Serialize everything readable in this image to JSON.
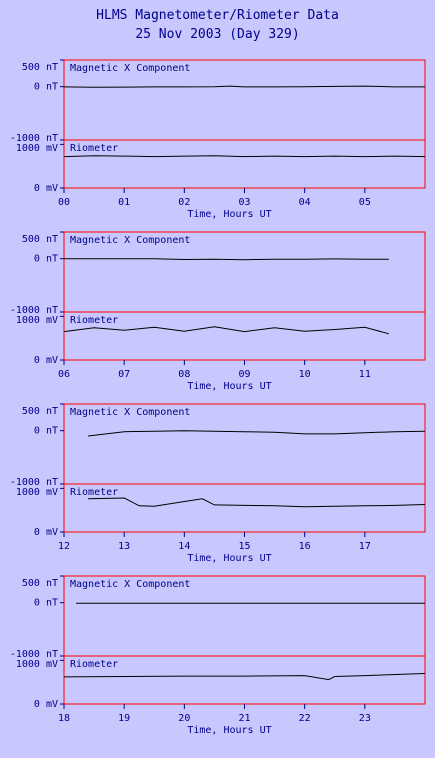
{
  "title_line1": "HLMS Magnetometer/Riometer Data",
  "title_line2": "25 Nov 2003 (Day 329)",
  "colors": {
    "background": "#c8c8ff",
    "frame": "#ff0000",
    "text": "#00008b",
    "trace": "#000000"
  },
  "chart_data": [
    {
      "type": "line",
      "x_range": [
        0,
        6
      ],
      "x_ticks": [
        "00",
        "01",
        "02",
        "03",
        "04",
        "05"
      ],
      "xlabel": "Time, Hours UT",
      "mag_panel": {
        "label": "Magnetic X Component",
        "ylim": [
          -1000,
          500
        ],
        "y_ticks": [
          "500 nT",
          "0 nT",
          "-1000 nT"
        ],
        "series": [
          {
            "x": [
              0.0,
              0.5,
              1.0,
              1.5,
              2.0,
              2.5,
              2.75,
              3.0,
              3.5,
              4.0,
              4.5,
              5.0,
              5.5,
              6.0
            ],
            "y": [
              -5,
              -10,
              -8,
              -5,
              -5,
              0,
              10,
              -5,
              -5,
              0,
              5,
              10,
              -5,
              -5
            ]
          }
        ]
      },
      "rio_panel": {
        "label": "Riometer",
        "ylim": [
          0,
          1100
        ],
        "y_ticks": [
          "1000 mV",
          "0 mV"
        ],
        "series": [
          {
            "x": [
              0.0,
              0.5,
              1.0,
              1.5,
              2.0,
              2.5,
              3.0,
              3.5,
              4.0,
              4.5,
              5.0,
              5.5,
              6.0
            ],
            "y": [
              720,
              740,
              730,
              720,
              730,
              740,
              720,
              730,
              720,
              730,
              720,
              730,
              720
            ]
          }
        ]
      }
    },
    {
      "type": "line",
      "x_range": [
        6,
        12
      ],
      "x_ticks": [
        "06",
        "07",
        "08",
        "09",
        "10",
        "11"
      ],
      "xlabel": "Time, Hours UT",
      "mag_panel": {
        "label": "Magnetic X Component",
        "ylim": [
          -1000,
          500
        ],
        "y_ticks": [
          "500 nT",
          "0 nT",
          "-1000 nT"
        ],
        "series": [
          {
            "x": [
              6.0,
              7.0,
              7.5,
              8.0,
              8.5,
              9.0,
              9.5,
              10.0,
              10.5,
              11.0,
              11.4
            ],
            "y": [
              0,
              0,
              0,
              -15,
              -10,
              -20,
              -10,
              -10,
              -5,
              -10,
              -10
            ]
          }
        ]
      },
      "rio_panel": {
        "label": "Riometer",
        "ylim": [
          0,
          1100
        ],
        "y_ticks": [
          "1000 mV",
          "0 mV"
        ],
        "series": [
          {
            "x": [
              6.0,
              6.5,
              7.0,
              7.5,
              8.0,
              8.5,
              9.0,
              9.5,
              10.0,
              10.5,
              11.0,
              11.4
            ],
            "y": [
              650,
              740,
              680,
              750,
              660,
              760,
              650,
              740,
              660,
              700,
              750,
              600
            ]
          }
        ]
      }
    },
    {
      "type": "line",
      "x_range": [
        12,
        18
      ],
      "x_ticks": [
        "12",
        "13",
        "14",
        "15",
        "16",
        "17"
      ],
      "xlabel": "Time, Hours UT",
      "mag_panel": {
        "label": "Magnetic X Component",
        "ylim": [
          -1000,
          500
        ],
        "y_ticks": [
          "500 nT",
          "0 nT",
          "-1000 nT"
        ],
        "series": [
          {
            "x": [
              12.4,
              12.7,
              13.0,
              13.5,
              14.0,
              14.5,
              15.0,
              15.5,
              16.0,
              16.5,
              17.0,
              17.5,
              18.0
            ],
            "y": [
              -100,
              -60,
              -20,
              -10,
              0,
              -10,
              -20,
              -30,
              -60,
              -60,
              -40,
              -20,
              -10
            ]
          }
        ]
      },
      "rio_panel": {
        "label": "Riometer",
        "ylim": [
          0,
          1100
        ],
        "y_ticks": [
          "1000 mV",
          "0 mV"
        ],
        "series": [
          {
            "x": [
              12.4,
              13.0,
              13.25,
              13.5,
              14.0,
              14.3,
              14.5,
              15.0,
              15.5,
              16.0,
              16.5,
              17.0,
              17.5,
              18.0
            ],
            "y": [
              760,
              780,
              600,
              590,
              700,
              760,
              620,
              610,
              600,
              580,
              590,
              600,
              610,
              630
            ]
          }
        ]
      }
    },
    {
      "type": "line",
      "x_range": [
        18,
        24
      ],
      "x_ticks": [
        "18",
        "19",
        "20",
        "21",
        "22",
        "23"
      ],
      "xlabel": "Time, Hours UT",
      "mag_panel": {
        "label": "Magnetic X Component",
        "ylim": [
          -1000,
          500
        ],
        "y_ticks": [
          "500 nT",
          "0 nT",
          "-1000 nT"
        ],
        "series": [
          {
            "x": [
              18.2,
              19.0,
              20.0,
              21.0,
              22.0,
              22.5,
              23.0,
              24.0
            ],
            "y": [
              -10,
              -10,
              -10,
              -10,
              -10,
              -10,
              -10,
              -10
            ]
          }
        ]
      },
      "rio_panel": {
        "label": "Riometer",
        "ylim": [
          0,
          1100
        ],
        "y_ticks": [
          "1000 mV",
          "0 mV"
        ],
        "series": [
          {
            "x": [
              18.0,
              19.0,
              20.0,
              21.0,
              22.0,
              22.4,
              22.5,
              23.0,
              24.0
            ],
            "y": [
              620,
              630,
              640,
              640,
              650,
              560,
              630,
              650,
              700
            ]
          }
        ]
      }
    }
  ]
}
